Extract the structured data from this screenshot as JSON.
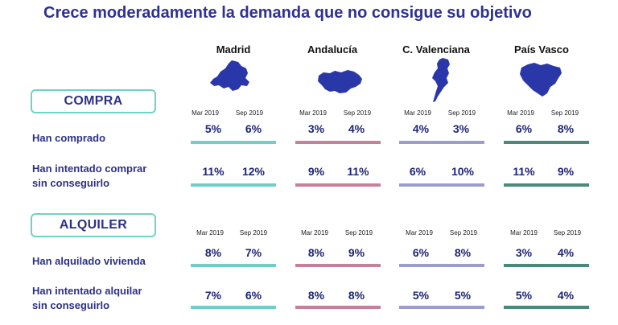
{
  "title": "Crece moderadamente la demanda que no consigue su objetivo",
  "colors": {
    "title": "#2f3191",
    "label": "#2d3186",
    "section_border": "#6fd3c4",
    "madrid": "#6fcfc6",
    "andalucia": "#c77f9c",
    "valenciana": "#9b9ccf",
    "pais_vasco": "#4a8a7a",
    "map_fill": "#2a37a8"
  },
  "regions": [
    {
      "name": "Madrid",
      "icon": "madrid-map-icon"
    },
    {
      "name": "Andalucía",
      "icon": "andalucia-map-icon"
    },
    {
      "name": "C. Valenciana",
      "icon": "valenciana-map-icon"
    },
    {
      "name": "País Vasco",
      "icon": "pais-vasco-map-icon"
    }
  ],
  "periods": [
    "Mar 2019",
    "Sep 2019"
  ],
  "sections": [
    {
      "name": "COMPRA",
      "rows": [
        {
          "label_1": "Han comprado",
          "label_2": "",
          "values": [
            [
              "5%",
              "6%"
            ],
            [
              "3%",
              "4%"
            ],
            [
              "4%",
              "3%"
            ],
            [
              "6%",
              "8%"
            ]
          ]
        },
        {
          "label_1": "Han intentado comprar",
          "label_2": "sin conseguirlo",
          "values": [
            [
              "11%",
              "12%"
            ],
            [
              "9%",
              "11%"
            ],
            [
              "6%",
              "10%"
            ],
            [
              "11%",
              "9%"
            ]
          ]
        }
      ]
    },
    {
      "name": "ALQUILER",
      "rows": [
        {
          "label_1": "Han alquilado vivienda",
          "label_2": "",
          "values": [
            [
              "8%",
              "7%"
            ],
            [
              "8%",
              "9%"
            ],
            [
              "6%",
              "8%"
            ],
            [
              "3%",
              "4%"
            ]
          ]
        },
        {
          "label_1": "Han intentado alquilar",
          "label_2": "sin conseguirlo",
          "values": [
            [
              "7%",
              "6%"
            ],
            [
              "8%",
              "8%"
            ],
            [
              "5%",
              "5%"
            ],
            [
              "5%",
              "4%"
            ]
          ]
        }
      ]
    }
  ]
}
